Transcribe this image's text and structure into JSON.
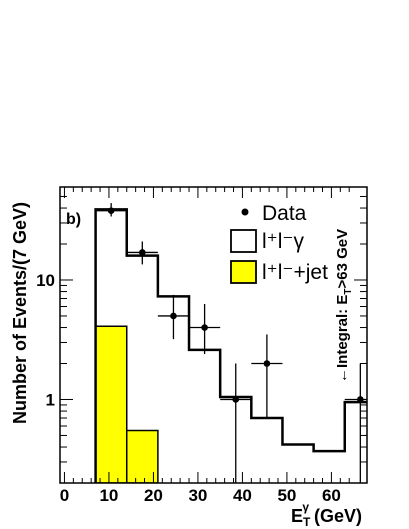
{
  "chart_data": {
    "type": "bar",
    "panel_label": "b)",
    "xlabel": "E",
    "xlabel_sub": "T",
    "xlabel_sup": "γ",
    "xlabel_unit": " (GeV)",
    "ylabel": "Number of Events/(7 GeV)",
    "xlim": [
      -1,
      68
    ],
    "ylim": [
      0.2,
      60
    ],
    "y_scale": "log",
    "x_ticks": [
      0,
      10,
      20,
      30,
      40,
      50,
      60
    ],
    "y_ticks": [
      {
        "value": 1,
        "label": "1"
      },
      {
        "value": 10,
        "label": "10"
      }
    ],
    "bin_edges": [
      7,
      14,
      21,
      28,
      35,
      42,
      49,
      56,
      63,
      70
    ],
    "series": [
      {
        "name": "l⁺l⁻γ",
        "style": "step",
        "color": "#000000",
        "values": [
          39,
          16,
          7.3,
          2.6,
          1.05,
          0.7,
          0.42,
          0.37,
          0.95
        ]
      },
      {
        "name": "l⁺l⁻+jet",
        "style": "filled",
        "color": "#ffff00",
        "values": [
          4.1,
          0.55,
          0,
          0,
          0,
          0,
          0,
          0,
          0
        ]
      },
      {
        "name": "Data",
        "style": "points",
        "color": "#000000",
        "x": [
          10.5,
          17.5,
          24.5,
          31.5,
          38.5,
          45.5,
          66.5
        ],
        "y": [
          38,
          17,
          5,
          4,
          1,
          2,
          1
        ],
        "y_low": [
          34,
          13.5,
          3.2,
          2.4,
          0.2,
          0.7,
          0.2
        ],
        "y_high": [
          44,
          21,
          7.5,
          6.3,
          2.0,
          3.5,
          2.0
        ]
      }
    ],
    "legend": {
      "placement": "top-right",
      "entries": [
        {
          "label": "Data",
          "marker": "dot"
        },
        {
          "label": "l⁺l⁻γ",
          "marker": "box-open"
        },
        {
          "label": "l⁺l⁻+jet",
          "marker": "box-yellow"
        }
      ]
    },
    "annotation": {
      "text": "←Integral: E",
      "sub": "T",
      "tail": ">63 GeV"
    }
  }
}
